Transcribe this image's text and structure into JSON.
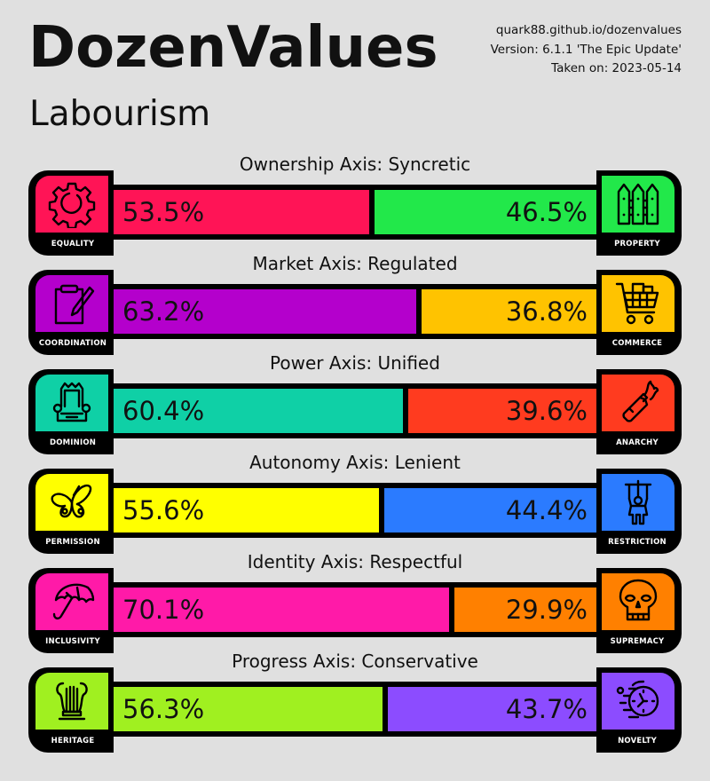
{
  "header": {
    "title": "DozenValues",
    "ideology": "Labourism",
    "site": "quark88.github.io/dozenvalues",
    "version": "Version: 6.1.1 'The Epic Update'",
    "taken": "Taken on: 2023-05-14"
  },
  "axes": [
    {
      "title": "Ownership Axis: Syncretic",
      "left": {
        "label": "EQUALITY",
        "icon": "gear-icon",
        "value": "53.5%",
        "pct": 53.5,
        "color": "#ff1456"
      },
      "right": {
        "label": "PROPERTY",
        "icon": "fence-icon",
        "value": "46.5%",
        "pct": 46.5,
        "color": "#22e84a"
      }
    },
    {
      "title": "Market Axis: Regulated",
      "left": {
        "label": "COORDINATION",
        "icon": "clipboard-pencil-icon",
        "value": "63.2%",
        "pct": 63.2,
        "color": "#b400cc"
      },
      "right": {
        "label": "COMMERCE",
        "icon": "shopping-cart-icon",
        "value": "36.8%",
        "pct": 36.8,
        "color": "#ffc300"
      }
    },
    {
      "title": "Power Axis: Unified",
      "left": {
        "label": "DOMINION",
        "icon": "throne-icon",
        "value": "60.4%",
        "pct": 60.4,
        "color": "#0fd0a6"
      },
      "right": {
        "label": "ANARCHY",
        "icon": "molotov-icon",
        "value": "39.6%",
        "pct": 39.6,
        "color": "#ff3b1f"
      }
    },
    {
      "title": "Autonomy Axis: Lenient",
      "left": {
        "label": "PERMISSION",
        "icon": "butterfly-icon",
        "value": "55.6%",
        "pct": 55.6,
        "color": "#ffff00"
      },
      "right": {
        "label": "RESTRICTION",
        "icon": "puppet-icon",
        "value": "44.4%",
        "pct": 44.4,
        "color": "#2b7bff"
      }
    },
    {
      "title": "Identity Axis: Respectful",
      "left": {
        "label": "INCLUSIVITY",
        "icon": "umbrella-icon",
        "value": "70.1%",
        "pct": 70.1,
        "color": "#ff1aa8"
      },
      "right": {
        "label": "SUPREMACY",
        "icon": "skull-icon",
        "value": "29.9%",
        "pct": 29.9,
        "color": "#ff8000"
      }
    },
    {
      "title": "Progress Axis: Conservative",
      "left": {
        "label": "HERITAGE",
        "icon": "lyre-icon",
        "value": "56.3%",
        "pct": 56.3,
        "color": "#a0f020"
      },
      "right": {
        "label": "NOVELTY",
        "icon": "fast-clock-icon",
        "value": "43.7%",
        "pct": 43.7,
        "color": "#8c4cff"
      }
    }
  ]
}
